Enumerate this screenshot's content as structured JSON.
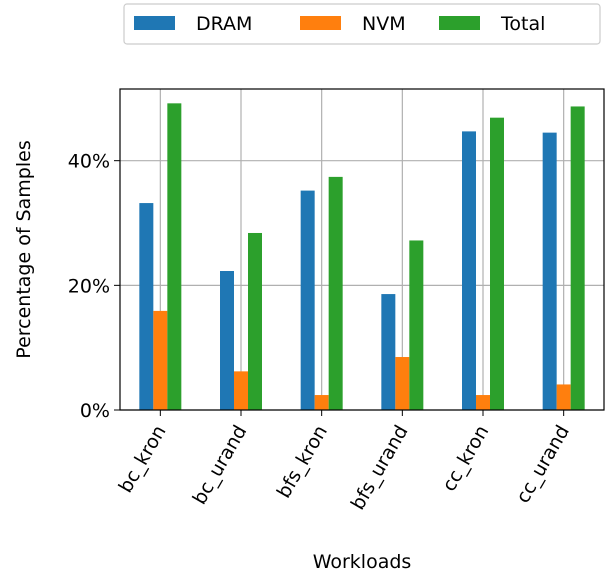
{
  "chart_data": {
    "type": "bar",
    "categories": [
      "bc_kron",
      "bc_urand",
      "bfs_kron",
      "bfs_urand",
      "cc_kron",
      "cc_urand"
    ],
    "series": [
      {
        "name": "DRAM",
        "color": "#1f77b4",
        "values": [
          33.2,
          22.3,
          35.2,
          18.6,
          44.7,
          44.5
        ]
      },
      {
        "name": "NVM",
        "color": "#ff7f0e",
        "values": [
          15.9,
          6.2,
          2.4,
          8.5,
          2.4,
          4.1
        ]
      },
      {
        "name": "Total",
        "color": "#2ca02c",
        "values": [
          49.2,
          28.4,
          37.4,
          27.2,
          46.9,
          48.7
        ]
      }
    ],
    "xlabel": "Workloads",
    "ylabel": "Percentage of Samples",
    "yticks": [
      0,
      20,
      40
    ],
    "ytick_labels": [
      "0%",
      "20%",
      "40%"
    ],
    "ylim": [
      0,
      51.5
    ],
    "grid": true,
    "legend_position": "top, outside plot, horizontal"
  }
}
